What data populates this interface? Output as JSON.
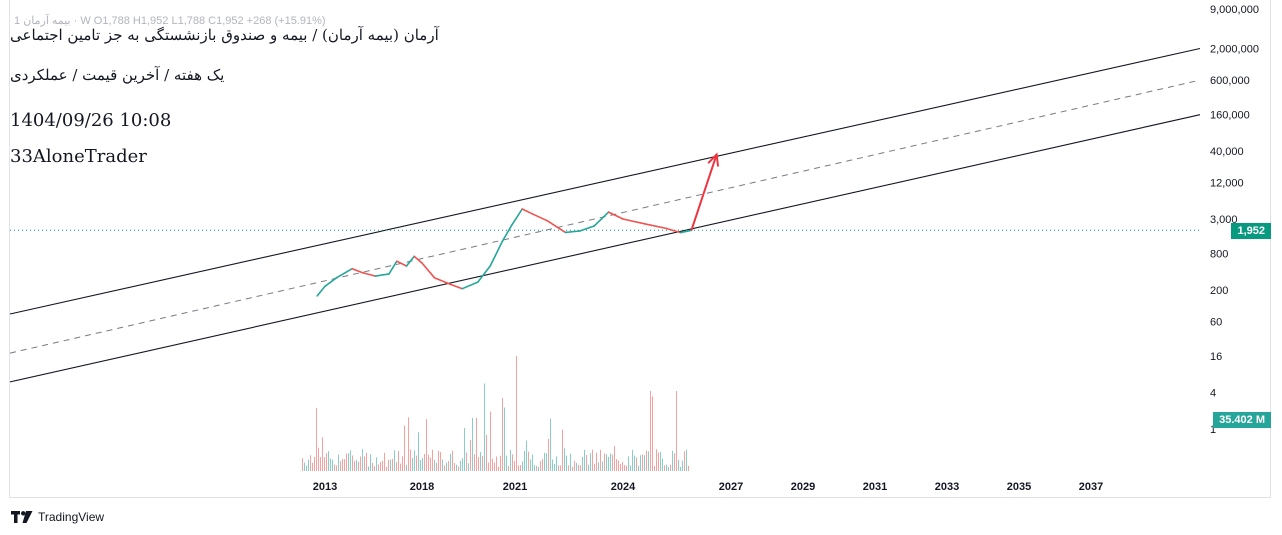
{
  "overlay": {
    "title": "آرمان (بیمه آرمان) / بیمه و صندوق بازنشستگی به جز تامین اجتماعی",
    "subtitle": "یک هفته / آخرین قیمت / عملکردی",
    "datetime": "1404/09/26 10:08",
    "author": "33AloneTrader",
    "ohlc_line": "1  بیمه آرمان · W  O1,788  H1,952  L1,788  C1,952  +268 (+15.91%)"
  },
  "brand": {
    "name": "TradingView"
  },
  "colors": {
    "up": "#26a69a",
    "down": "#ef5350",
    "channel": "#131722",
    "midline": "#787b86",
    "arrow": "#ef3340",
    "price_tag": "#089981",
    "volume_tag": "#26a69a"
  },
  "chart_data": {
    "type": "line",
    "scale": "log",
    "title": "آرمان (بیمه آرمان) / بیمه و صندوق بازنشستگی به جز تامین اجتماعی",
    "xlabel": "",
    "ylabel": "",
    "x_ticks": [
      2013,
      2018,
      2021,
      2024,
      2027,
      2029,
      2031,
      2033,
      2035,
      2037
    ],
    "y_ticks": [
      "9,000,000",
      "2,000,000",
      "600,000",
      "160,000",
      "40,000",
      "12,000",
      "3,000",
      "800",
      "200",
      "60",
      "16",
      "4",
      "1"
    ],
    "last_price": 1952,
    "last_price_label": "1,952",
    "volume_label": "35.402 M",
    "price_series": [
      {
        "year": 2012.6,
        "price": 160
      },
      {
        "year": 2013.0,
        "price": 230
      },
      {
        "year": 2013.6,
        "price": 320
      },
      {
        "year": 2014.4,
        "price": 450
      },
      {
        "year": 2014.9,
        "price": 390
      },
      {
        "year": 2015.6,
        "price": 340
      },
      {
        "year": 2016.3,
        "price": 370
      },
      {
        "year": 2016.7,
        "price": 600
      },
      {
        "year": 2017.2,
        "price": 500
      },
      {
        "year": 2017.6,
        "price": 720
      },
      {
        "year": 2018.0,
        "price": 560
      },
      {
        "year": 2018.4,
        "price": 320
      },
      {
        "year": 2018.9,
        "price": 250
      },
      {
        "year": 2019.3,
        "price": 210
      },
      {
        "year": 2019.8,
        "price": 270
      },
      {
        "year": 2020.2,
        "price": 500
      },
      {
        "year": 2020.6,
        "price": 1300
      },
      {
        "year": 2020.9,
        "price": 2400
      },
      {
        "year": 2021.2,
        "price": 4400
      },
      {
        "year": 2021.5,
        "price": 3600
      },
      {
        "year": 2021.9,
        "price": 2800
      },
      {
        "year": 2022.4,
        "price": 1800
      },
      {
        "year": 2022.8,
        "price": 1900
      },
      {
        "year": 2023.2,
        "price": 2300
      },
      {
        "year": 2023.6,
        "price": 3900
      },
      {
        "year": 2024.0,
        "price": 3000
      },
      {
        "year": 2024.6,
        "price": 2500
      },
      {
        "year": 2025.2,
        "price": 2100
      },
      {
        "year": 2025.6,
        "price": 1788
      },
      {
        "year": 2025.9,
        "price": 1952
      }
    ],
    "channel": {
      "upper": [
        {
          "year": 2010.0,
          "price": 80
        },
        {
          "year": 2037.9,
          "price": 2000000
        }
      ],
      "middle": [
        {
          "year": 2010.0,
          "price": 18
        },
        {
          "year": 2037.9,
          "price": 600000
        }
      ],
      "lower": [
        {
          "year": 2010.0,
          "price": 6
        },
        {
          "year": 2037.9,
          "price": 160000
        }
      ]
    },
    "projection_arrow": [
      {
        "year": 2025.9,
        "price": 1952
      },
      {
        "year": 2026.6,
        "price": 35000
      }
    ]
  }
}
